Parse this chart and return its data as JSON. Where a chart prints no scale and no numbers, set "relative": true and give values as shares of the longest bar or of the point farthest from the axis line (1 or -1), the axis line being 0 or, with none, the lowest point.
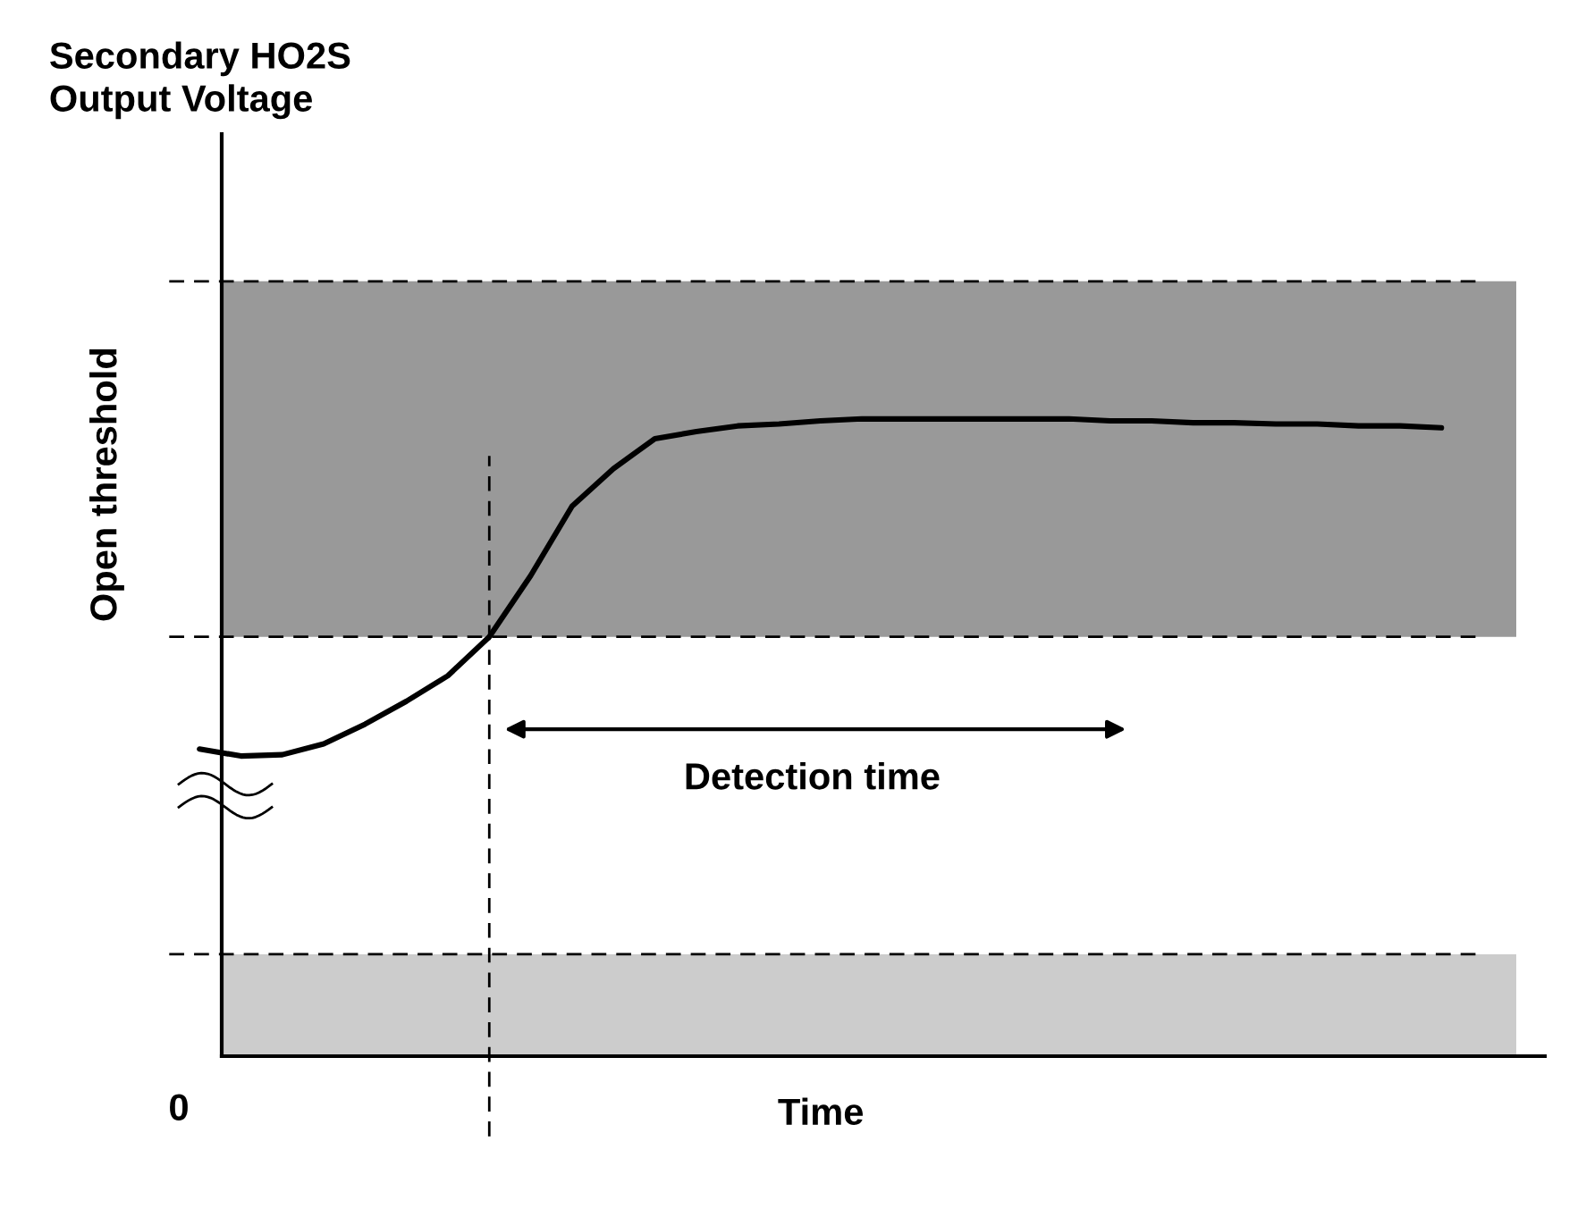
{
  "chart_data": {
    "type": "line",
    "relative": true,
    "title": "Secondary HO2S\nOutput Voltage",
    "xlabel": "Time",
    "ylabel": "Open threshold",
    "categories": [
      null,
      null,
      null,
      null,
      null,
      null,
      null,
      null,
      null,
      null,
      null,
      null,
      null,
      null,
      null,
      null,
      null,
      null,
      null,
      null,
      null,
      null,
      null,
      null,
      null,
      null,
      null,
      null,
      null,
      null,
      null,
      null,
      null
    ],
    "series": [
      {
        "color": "#000000",
        "values": [
          0.482,
          0.471,
          0.473,
          0.49,
          0.521,
          0.557,
          0.597,
          0.658,
          0.754,
          0.863,
          0.922,
          0.969,
          0.98,
          0.989,
          0.992,
          0.997,
          1.0,
          1.0,
          1.0,
          1.0,
          1.0,
          1.0,
          0.997,
          0.997,
          0.994,
          0.994,
          0.992,
          0.992,
          0.989,
          0.989,
          0.986,
          null,
          null
        ]
      }
    ],
    "bands": [
      {
        "axis": "y",
        "from": 0.658,
        "to": 1.216,
        "color": "#999999"
      },
      {
        "axis": "y",
        "from": 0,
        "to": 0.16,
        "color": "#cccccc"
      }
    ],
    "ref_lines": [
      {
        "axis": "y",
        "value": 1.216,
        "line_style": "dashed"
      },
      {
        "axis": "y",
        "value": 0.658,
        "line_style": "dashed"
      },
      {
        "axis": "y",
        "value": 0.16,
        "line_style": "dashed"
      }
    ],
    "annotations": [
      "Detection time",
      "0"
    ],
    "marker": "none",
    "line_style": "solid"
  }
}
